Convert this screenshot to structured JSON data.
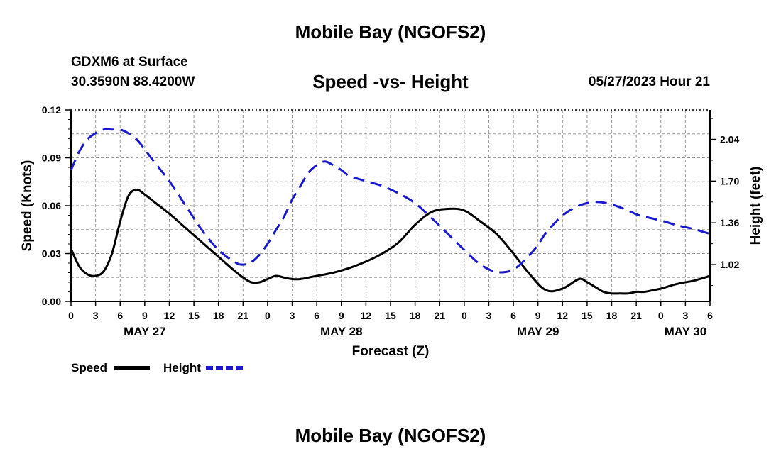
{
  "header": {
    "title": "Mobile Bay (NGOFS2)",
    "station": "GDXM6 at Surface",
    "coords": "30.3590N  88.4200W",
    "subtitle": "Speed -vs- Height",
    "datetime": "05/27/2023 Hour 21"
  },
  "footer": {
    "title": "Mobile Bay (NGOFS2)"
  },
  "legend": {
    "speed_label": "Speed",
    "height_label": "Height"
  },
  "colors": {
    "speed": "#000000",
    "height": "#1a1acc",
    "grid": "#9a9a9a"
  },
  "chart_data": {
    "type": "line",
    "title": "Speed -vs- Height",
    "xlabel": "Forecast (Z)",
    "ylabel_left": "Speed (Knots)",
    "ylabel_right": "Height (feet)",
    "x_range_hours": [
      0,
      78
    ],
    "x_tick_labels": [
      "0",
      "3",
      "6",
      "9",
      "12",
      "15",
      "18",
      "21",
      "0",
      "3",
      "6",
      "9",
      "12",
      "15",
      "18",
      "21",
      "0",
      "3",
      "6",
      "9",
      "12",
      "15",
      "18",
      "21",
      "0",
      "3",
      "6"
    ],
    "date_labels": [
      {
        "hour": 9,
        "label": "MAY 27"
      },
      {
        "hour": 33,
        "label": "MAY 28"
      },
      {
        "hour": 57,
        "label": "MAY 29"
      },
      {
        "hour": 75,
        "label": "MAY 30"
      }
    ],
    "y_left": {
      "min": 0,
      "max": 0.12,
      "ticks": [
        "0.00",
        "0.03",
        "0.06",
        "0.09",
        "0.12"
      ]
    },
    "y_right": {
      "min": 0.72,
      "max": 2.28,
      "ticks": [
        "1.02",
        "1.36",
        "1.70",
        "2.04"
      ]
    },
    "grid": true,
    "series": [
      {
        "name": "Speed",
        "axis": "left",
        "style": "solid",
        "x": [
          0,
          1,
          2,
          3,
          4,
          5,
          6,
          7,
          8,
          9,
          10,
          12,
          14,
          16,
          18,
          20,
          21,
          22,
          23,
          24,
          25,
          26,
          27,
          28,
          29,
          30,
          32,
          34,
          36,
          38,
          40,
          42,
          44,
          46,
          48,
          50,
          52,
          54,
          56,
          58,
          60,
          62,
          63,
          64,
          65,
          66,
          67,
          68,
          69,
          70,
          71,
          72,
          74,
          76,
          78
        ],
        "y": [
          0.033,
          0.022,
          0.017,
          0.016,
          0.019,
          0.03,
          0.05,
          0.066,
          0.07,
          0.067,
          0.063,
          0.055,
          0.046,
          0.037,
          0.028,
          0.019,
          0.015,
          0.012,
          0.012,
          0.014,
          0.016,
          0.015,
          0.014,
          0.014,
          0.015,
          0.016,
          0.018,
          0.021,
          0.025,
          0.03,
          0.037,
          0.048,
          0.056,
          0.058,
          0.057,
          0.05,
          0.042,
          0.03,
          0.017,
          0.007,
          0.008,
          0.014,
          0.012,
          0.009,
          0.006,
          0.005,
          0.005,
          0.005,
          0.006,
          0.006,
          0.007,
          0.008,
          0.011,
          0.013,
          0.016
        ]
      },
      {
        "name": "Height",
        "axis": "right",
        "style": "dashed",
        "x": [
          0,
          1,
          2,
          3,
          4,
          5,
          6,
          7,
          8,
          9,
          10,
          12,
          14,
          16,
          18,
          20,
          21,
          22,
          23,
          24,
          25,
          26,
          27,
          28,
          29,
          30,
          31,
          32,
          33,
          34,
          35,
          36,
          38,
          40,
          42,
          44,
          46,
          48,
          50,
          52,
          54,
          56,
          57,
          58,
          60,
          62,
          64,
          66,
          68,
          69,
          70,
          72,
          74,
          76,
          78
        ],
        "y": [
          1.79,
          1.94,
          2.04,
          2.09,
          2.12,
          2.12,
          2.12,
          2.09,
          2.04,
          1.96,
          1.87,
          1.7,
          1.5,
          1.3,
          1.14,
          1.04,
          1.02,
          1.04,
          1.1,
          1.19,
          1.3,
          1.41,
          1.55,
          1.66,
          1.77,
          1.83,
          1.86,
          1.83,
          1.79,
          1.74,
          1.72,
          1.7,
          1.66,
          1.6,
          1.52,
          1.4,
          1.27,
          1.14,
          1.02,
          0.96,
          0.98,
          1.1,
          1.18,
          1.28,
          1.42,
          1.5,
          1.53,
          1.51,
          1.46,
          1.43,
          1.41,
          1.38,
          1.34,
          1.31,
          1.27
        ]
      }
    ]
  }
}
